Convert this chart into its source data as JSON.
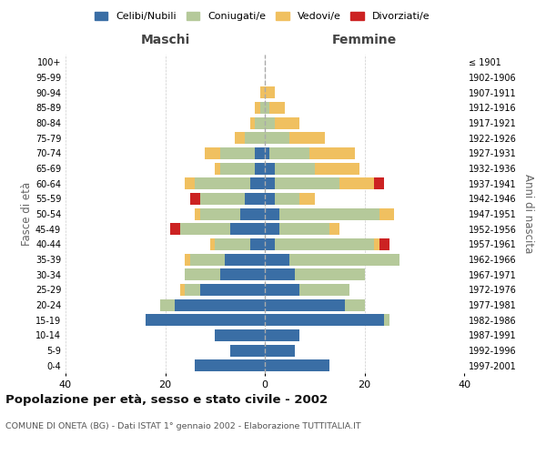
{
  "age_groups": [
    "0-4",
    "5-9",
    "10-14",
    "15-19",
    "20-24",
    "25-29",
    "30-34",
    "35-39",
    "40-44",
    "45-49",
    "50-54",
    "55-59",
    "60-64",
    "65-69",
    "70-74",
    "75-79",
    "80-84",
    "85-89",
    "90-94",
    "95-99",
    "100+"
  ],
  "birth_years": [
    "1997-2001",
    "1992-1996",
    "1987-1991",
    "1982-1986",
    "1977-1981",
    "1972-1976",
    "1967-1971",
    "1962-1966",
    "1957-1961",
    "1952-1956",
    "1947-1951",
    "1942-1946",
    "1937-1941",
    "1932-1936",
    "1927-1931",
    "1922-1926",
    "1917-1921",
    "1912-1916",
    "1907-1911",
    "1902-1906",
    "≤ 1901"
  ],
  "maschi": {
    "celibi": [
      14,
      7,
      10,
      24,
      18,
      13,
      9,
      8,
      3,
      7,
      5,
      4,
      3,
      2,
      2,
      0,
      0,
      0,
      0,
      0,
      0
    ],
    "coniugati": [
      0,
      0,
      0,
      0,
      3,
      3,
      7,
      7,
      7,
      10,
      8,
      9,
      11,
      7,
      7,
      4,
      2,
      1,
      0,
      0,
      0
    ],
    "vedovi": [
      0,
      0,
      0,
      0,
      0,
      1,
      0,
      1,
      1,
      0,
      1,
      0,
      2,
      1,
      3,
      2,
      1,
      1,
      1,
      0,
      0
    ],
    "divorziati": [
      0,
      0,
      0,
      0,
      0,
      0,
      0,
      0,
      0,
      2,
      0,
      2,
      0,
      0,
      0,
      0,
      0,
      0,
      0,
      0,
      0
    ]
  },
  "femmine": {
    "nubili": [
      13,
      6,
      7,
      24,
      16,
      7,
      6,
      5,
      2,
      3,
      3,
      2,
      2,
      2,
      1,
      0,
      0,
      0,
      0,
      0,
      0
    ],
    "coniugate": [
      0,
      0,
      0,
      1,
      4,
      10,
      14,
      22,
      20,
      10,
      20,
      5,
      13,
      8,
      8,
      5,
      2,
      1,
      0,
      0,
      0
    ],
    "vedove": [
      0,
      0,
      0,
      0,
      0,
      0,
      0,
      0,
      1,
      2,
      3,
      3,
      7,
      9,
      9,
      7,
      5,
      3,
      2,
      0,
      0
    ],
    "divorziate": [
      0,
      0,
      0,
      0,
      0,
      0,
      0,
      0,
      2,
      0,
      0,
      0,
      2,
      0,
      0,
      0,
      0,
      0,
      0,
      0,
      0
    ]
  },
  "colors": {
    "celibi": "#3a6ea5",
    "coniugati": "#b5c99a",
    "vedovi": "#f0c060",
    "divorziati": "#cc2222"
  },
  "title": "Popolazione per età, sesso e stato civile - 2002",
  "subtitle": "COMUNE DI ONETA (BG) - Dati ISTAT 1° gennaio 2002 - Elaborazione TUTTITALIA.IT",
  "xlabel_left": "Maschi",
  "xlabel_right": "Femmine",
  "ylabel_left": "Fasce di età",
  "ylabel_right": "Anni di nascita",
  "xlim": 40,
  "background_color": "#ffffff",
  "legend_labels": [
    "Celibi/Nubili",
    "Coniugati/e",
    "Vedovi/e",
    "Divorziati/e"
  ]
}
